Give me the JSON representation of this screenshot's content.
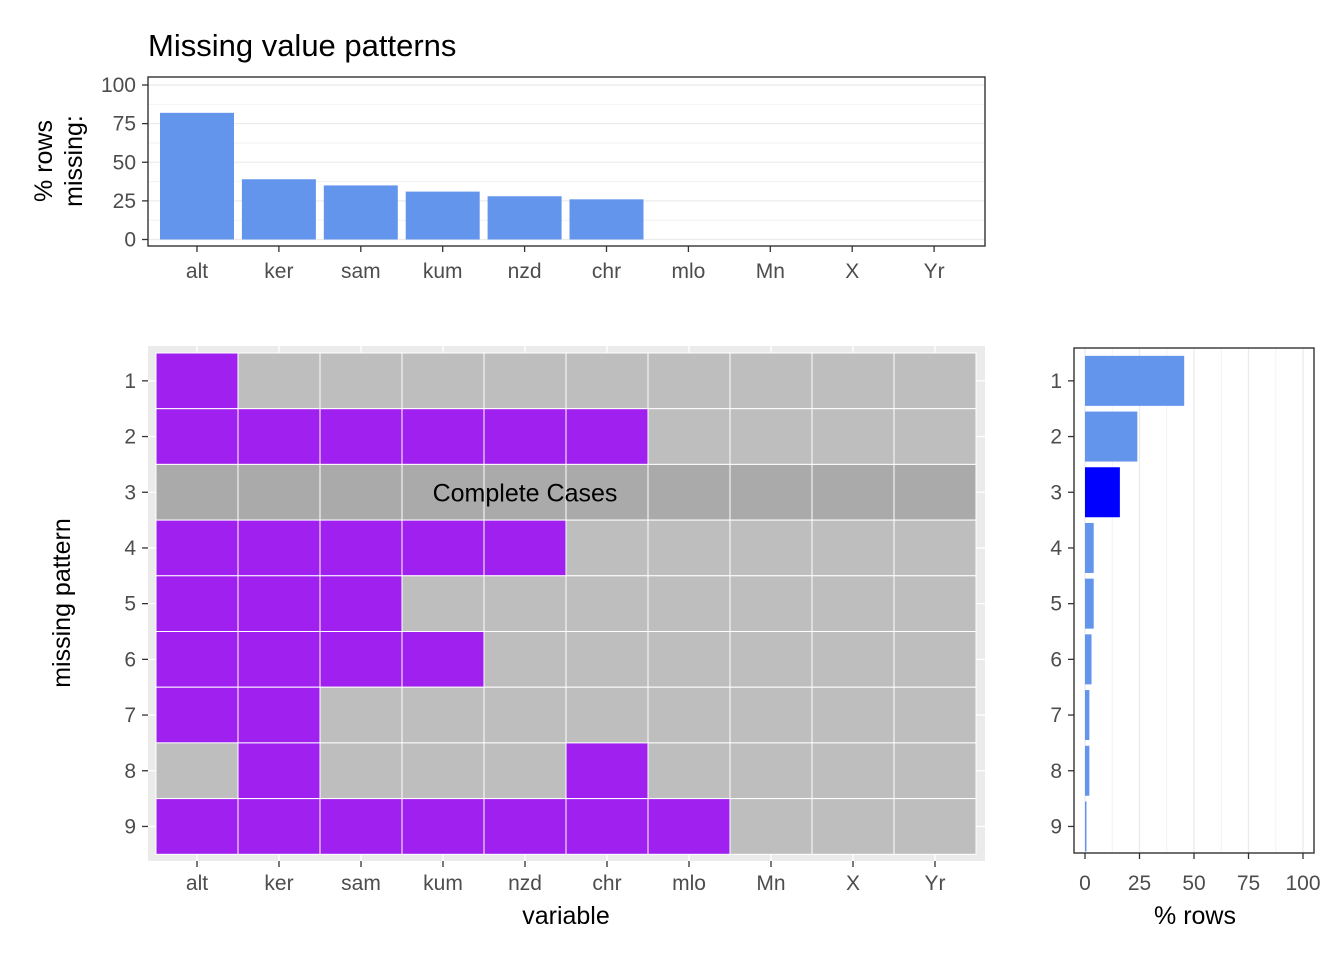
{
  "chart_data": [
    {
      "type": "bar",
      "title": "Missing value patterns",
      "ylabel_lines": [
        "% rows",
        "missing:"
      ],
      "xlabel": "",
      "categories": [
        "alt",
        "ker",
        "sam",
        "kum",
        "nzd",
        "chr",
        "mlo",
        "Mn",
        "X",
        "Yr"
      ],
      "values": [
        82,
        39,
        35,
        31,
        28,
        26,
        0,
        0,
        0,
        0
      ],
      "ylim": [
        0,
        100
      ],
      "yticks": [
        "0",
        "25",
        "50",
        "75",
        "100"
      ],
      "color": "#6495ED",
      "grid": true
    },
    {
      "type": "heatmap",
      "xlabel": "variable",
      "ylabel": "missing pattern",
      "x": [
        "alt",
        "ker",
        "sam",
        "kum",
        "nzd",
        "chr",
        "mlo",
        "Mn",
        "X",
        "Yr"
      ],
      "y": [
        "1",
        "2",
        "3",
        "4",
        "5",
        "6",
        "7",
        "8",
        "9"
      ],
      "cells": [
        [
          1,
          0,
          0,
          0,
          0,
          0,
          0,
          0,
          0,
          0
        ],
        [
          1,
          1,
          1,
          1,
          1,
          1,
          0,
          0,
          0,
          0
        ],
        [
          0,
          0,
          0,
          0,
          0,
          0,
          0,
          0,
          0,
          0
        ],
        [
          1,
          1,
          1,
          1,
          1,
          0,
          0,
          0,
          0,
          0
        ],
        [
          1,
          1,
          1,
          0,
          0,
          0,
          0,
          0,
          0,
          0
        ],
        [
          1,
          1,
          1,
          1,
          0,
          0,
          0,
          0,
          0,
          0
        ],
        [
          1,
          1,
          0,
          0,
          0,
          0,
          0,
          0,
          0,
          0
        ],
        [
          0,
          1,
          0,
          0,
          0,
          1,
          0,
          0,
          0,
          0
        ],
        [
          1,
          1,
          1,
          1,
          1,
          1,
          1,
          0,
          0,
          0
        ]
      ],
      "complete_row": 3,
      "annotation": "Complete Cases",
      "missing_color": "#A020F0",
      "present_color": "#BEBEBE",
      "complete_color": "#AAAAAA",
      "panel_background": "#EBEBEB"
    },
    {
      "type": "bar",
      "orientation": "horizontal",
      "xlabel": "% rows",
      "ylabel": "",
      "categories": [
        "1",
        "2",
        "3",
        "4",
        "5",
        "6",
        "7",
        "8",
        "9"
      ],
      "values": [
        45.5,
        24,
        16,
        4,
        4,
        3,
        2,
        2,
        0.5
      ],
      "xlim": [
        0,
        100
      ],
      "xticks": [
        "0",
        "25",
        "50",
        "75",
        "100"
      ],
      "color": "#6495ED",
      "highlight_color": "#0000FF",
      "highlight_category": "3",
      "grid": true
    }
  ]
}
